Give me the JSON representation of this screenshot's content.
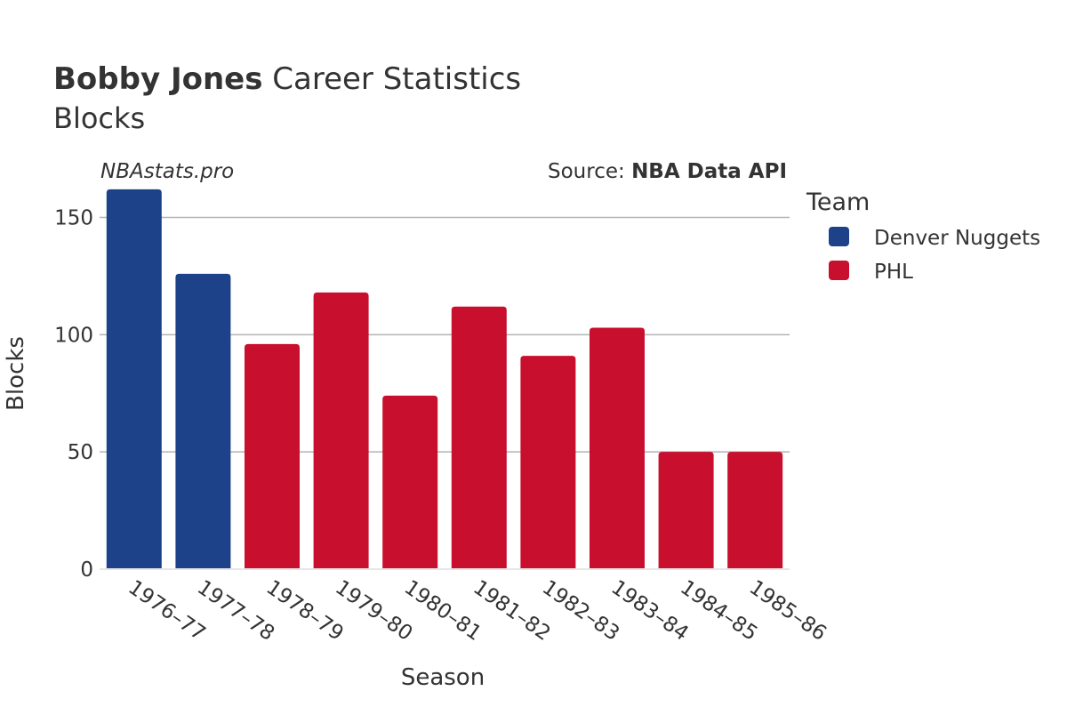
{
  "chart_data": {
    "type": "bar",
    "title_bold": "Bobby Jones",
    "title_rest": " Career Statistics",
    "subtitle": "Blocks",
    "watermark": "NBAstats.pro",
    "source_prefix": "Source: ",
    "source_name": "NBA Data API",
    "xlabel": "Season",
    "ylabel": "Blocks",
    "ylim": [
      0,
      165
    ],
    "yticks": [
      0,
      50,
      100,
      150
    ],
    "legend_title": "Team",
    "legend_position": "right",
    "teams": [
      {
        "name": "Denver Nuggets",
        "color": "#1d428a"
      },
      {
        "name": "PHL",
        "color": "#c8102e"
      }
    ],
    "categories": [
      "1976–77",
      "1977–78",
      "1978–79",
      "1979–80",
      "1980–81",
      "1981–82",
      "1982–83",
      "1983–84",
      "1984–85",
      "1985–86"
    ],
    "values": [
      162,
      126,
      96,
      118,
      74,
      112,
      91,
      103,
      50,
      50
    ],
    "team_index": [
      0,
      0,
      1,
      1,
      1,
      1,
      1,
      1,
      1,
      1
    ]
  }
}
